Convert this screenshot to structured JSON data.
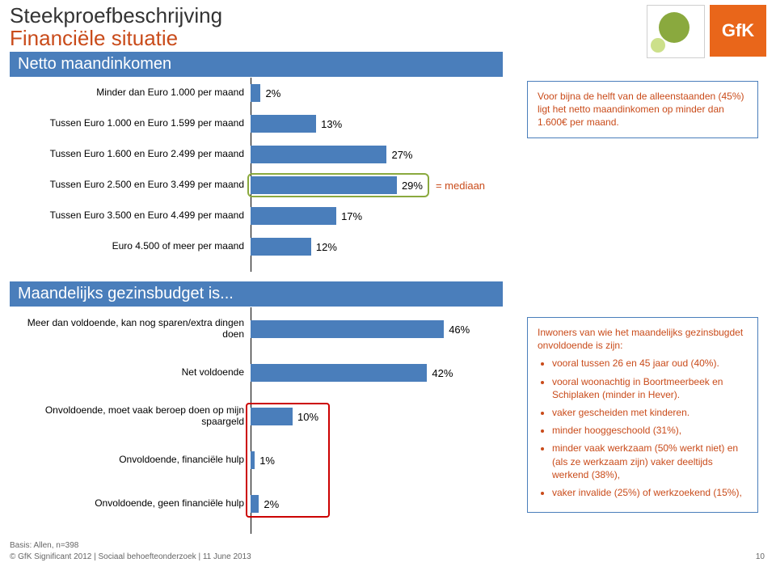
{
  "title_line1": "Steekproefbeschrijving",
  "title_line2": "Financiële situatie",
  "logo_gfk_text": "GfK",
  "section1": {
    "header": "Netto maandinkomen",
    "bar_color": "#4a7ebb",
    "value_color": "#000000",
    "max_value": 50,
    "rows": [
      {
        "label": "Minder dan Euro 1.000 per maand",
        "value": 2,
        "text": "2%"
      },
      {
        "label": "Tussen Euro 1.000 en Euro 1.599 per maand",
        "value": 13,
        "text": "13%"
      },
      {
        "label": "Tussen Euro 1.600 en Euro 2.499 per maand",
        "value": 27,
        "text": "27%"
      },
      {
        "label": "Tussen Euro 2.500 en Euro 3.499 per maand",
        "value": 29,
        "text": "29%"
      },
      {
        "label": "Tussen Euro 3.500 en Euro 4.499 per maand",
        "value": 17,
        "text": "17%"
      },
      {
        "label": "Euro 4.500 of meer per maand",
        "value": 12,
        "text": "12%"
      }
    ],
    "median_row_index": 3,
    "median_label": "= mediaan",
    "median_box_color": "#8aa93e",
    "callout": "Voor bijna de helft van de alleenstaanden (45%) ligt het netto maandinkomen op minder dan 1.600€ per maand."
  },
  "section2": {
    "header": "Maandelijks gezinsbudget is...",
    "bar_color": "#4a7ebb",
    "max_value": 60,
    "rows": [
      {
        "label": "Meer dan voldoende, kan nog sparen/extra dingen doen",
        "value": 46,
        "text": "46%"
      },
      {
        "label": "Net voldoende",
        "value": 42,
        "text": "42%"
      },
      {
        "label": "Onvoldoende, moet vaak beroep doen op mijn spaargeld",
        "value": 10,
        "text": "10%"
      },
      {
        "label": "Onvoldoende, financiële hulp",
        "value": 1,
        "text": "1%"
      },
      {
        "label": "Onvoldoende, geen financiële hulp",
        "value": 2,
        "text": "2%"
      }
    ],
    "red_box_rows": [
      2,
      4
    ],
    "red_box_color": "#cc0000",
    "callout_intro": "Inwoners van wie het maandelijks gezinsbugdet onvoldoende is zijn:",
    "callout_items": [
      "vooral tussen 26 en 45 jaar oud (40%).",
      "vooral woonachtig in Boortmeerbeek en Schiplaken (minder in Hever).",
      "vaker gescheiden met kinderen.",
      "minder hooggeschoold (31%),",
      "minder vaak werkzaam (50% werkt niet) en (als ze werkzaam zijn) vaker deeltijds werkend (38%),",
      "vaker invalide (25%) of werkzoekend (15%),"
    ]
  },
  "footer_base": "Basis: Allen, n=398",
  "footer_line": "© GfK Significant 2012 | Sociaal behoefteonderzoek | 11 June 2013",
  "pagenum": "10"
}
